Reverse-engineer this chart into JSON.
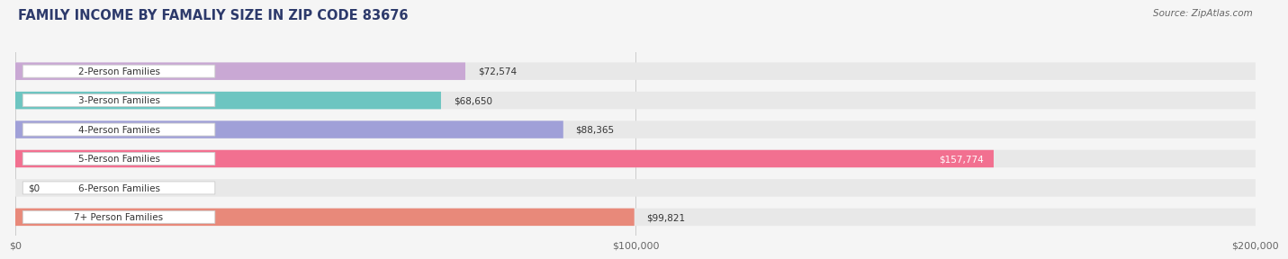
{
  "title": "FAMILY INCOME BY FAMALIY SIZE IN ZIP CODE 83676",
  "source": "Source: ZipAtlas.com",
  "categories": [
    "2-Person Families",
    "3-Person Families",
    "4-Person Families",
    "5-Person Families",
    "6-Person Families",
    "7+ Person Families"
  ],
  "values": [
    72574,
    68650,
    88365,
    157774,
    0,
    99821
  ],
  "bar_colors": [
    "#c9a8d4",
    "#6dc5c1",
    "#a0a0d8",
    "#f27090",
    "#f5c89a",
    "#e8897a"
  ],
  "bar_bg_color": "#e8e8e8",
  "label_bg_color": "#ffffff",
  "xmax": 200000,
  "xtick_labels": [
    "$0",
    "$100,000",
    "$200,000"
  ],
  "value_labels": [
    "$72,574",
    "$68,650",
    "$88,365",
    "$157,774",
    "$0",
    "$99,821"
  ],
  "background_color": "#f5f5f5",
  "title_color": "#2d3a6b",
  "title_fontsize": 10.5,
  "source_fontsize": 7.5,
  "value_label_fontsize": 7.5,
  "category_fontsize": 7.5
}
